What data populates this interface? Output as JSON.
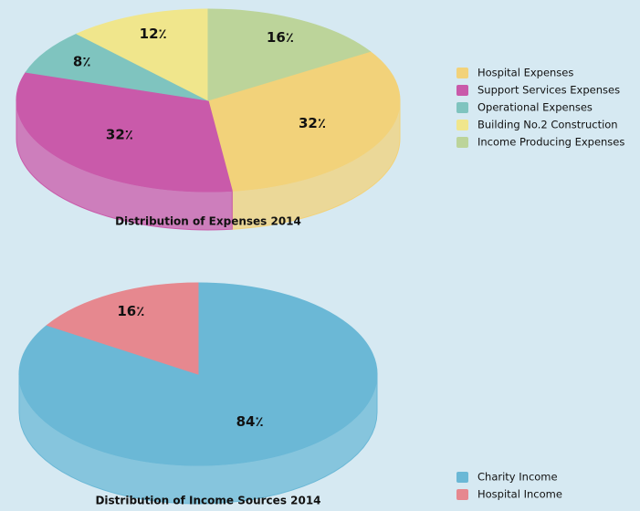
{
  "chart_data": [
    {
      "type": "pie",
      "title": "Distribution of Expenses 2014",
      "categories": [
        "Hospital Expenses",
        "Support Services Expenses",
        "Operational Expenses",
        "Building No.2 Construction",
        "Income Producing Expenses"
      ],
      "values": [
        32,
        32,
        8,
        12,
        16
      ],
      "value_labels": [
        "32٪",
        "32٪",
        "8٪",
        "12٪",
        "16٪"
      ],
      "colors": [
        "#f2d27a",
        "#c95aaa",
        "#7fc4bf",
        "#f0e68c",
        "#bcd49a"
      ]
    },
    {
      "type": "pie",
      "title": "Distribution of Income Sources 2014",
      "categories": [
        "Charity Income",
        "Hospital Income"
      ],
      "values": [
        84,
        16
      ],
      "value_labels": [
        "84٪",
        "16٪"
      ],
      "colors": [
        "#6bb8d6",
        "#e6888f"
      ]
    }
  ]
}
